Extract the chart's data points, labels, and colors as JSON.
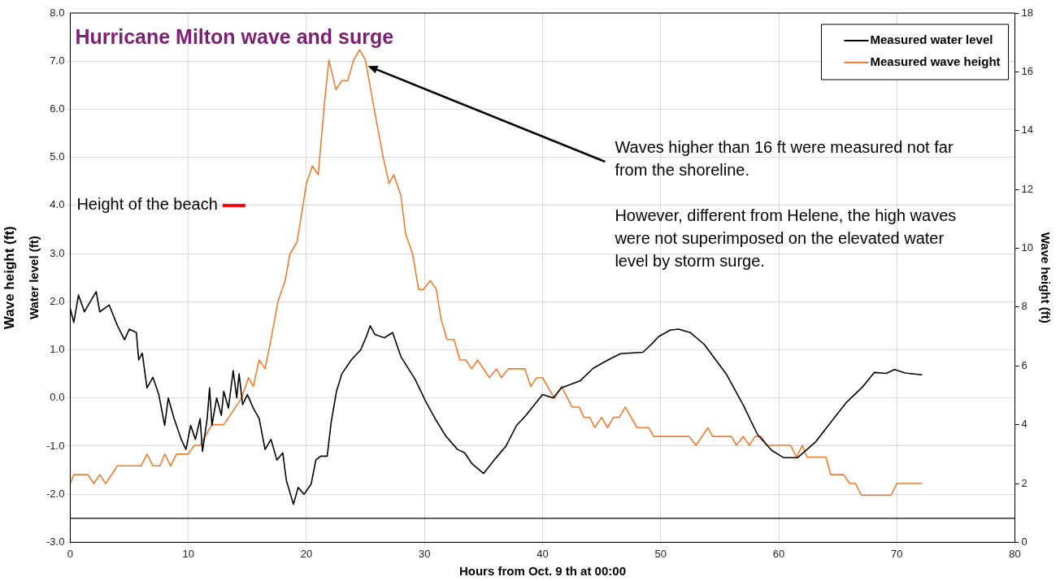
{
  "chart_data": {
    "type": "line",
    "title": "Hurricane Milton wave and surge",
    "xlabel": "Hours from Oct. 9 th at 00:00",
    "ylabel": "Water level (ft)",
    "y2label": "Wave height (ft)",
    "xlim": [
      0,
      80
    ],
    "xticks": [
      0,
      10,
      20,
      30,
      40,
      50,
      60,
      70,
      80
    ],
    "ylim": [
      -3,
      8
    ],
    "yticks": [
      {
        "value": -3,
        "label": "-3.0"
      },
      {
        "value": -2,
        "label": "-2.0"
      },
      {
        "value": -1,
        "label": "-1.0"
      },
      {
        "value": 0,
        "label": "0.0"
      },
      {
        "value": 1,
        "label": "1.0"
      },
      {
        "value": 2,
        "label": "2.0"
      },
      {
        "value": 3,
        "label": "3.0"
      },
      {
        "value": 4,
        "label": "4.0"
      },
      {
        "value": 5,
        "label": "5.0"
      },
      {
        "value": 6,
        "label": "6.0"
      },
      {
        "value": 7,
        "label": "7.0"
      },
      {
        "value": 8,
        "label": "8.0"
      }
    ],
    "y2lim": [
      0,
      18
    ],
    "y2ticks": [
      0,
      2,
      4,
      6,
      8,
      10,
      12,
      14,
      16,
      18
    ],
    "grid": true,
    "legend": "top right",
    "marker": "none",
    "line_style": "solid",
    "series": [
      {
        "name": "Measured water level",
        "color": "#000000",
        "x": [
          0,
          0.3,
          0.7,
          1.2,
          1.6,
          2.2,
          2.5,
          3.3,
          4,
          4.6,
          5,
          5.6,
          5.8,
          6.1,
          6.5,
          7,
          7.5,
          8,
          8.3,
          8.8,
          9.4,
          9.8,
          10.2,
          10.6,
          11,
          11.2,
          11.6,
          11.8,
          12,
          12.4,
          12.8,
          13,
          13.4,
          13.8,
          14.1,
          14.3,
          14.6,
          15,
          15.5,
          16,
          16.5,
          17,
          17.5,
          18,
          18.3,
          18.9,
          19.3,
          19.8,
          20.4,
          20.8,
          21.2,
          21.76,
          22.1,
          22.55,
          23,
          23.8,
          24.6,
          25.1,
          25.4,
          25.8,
          26.6,
          27.3,
          28,
          29.2,
          30.1,
          30.9,
          31.8,
          32.8,
          33.4,
          34,
          35,
          35.9,
          36.9,
          37.8,
          38.6,
          40,
          40.9,
          41.6,
          42.8,
          43.2,
          44.3,
          45.7,
          46.6,
          48.5,
          49.4,
          49.8,
          50.8,
          51.5,
          52.5,
          53.7,
          55.6,
          57,
          58.2,
          59.4,
          60.4,
          61.6,
          63.1,
          64.3,
          65.7,
          67.1,
          68.1,
          69.1,
          69.8,
          70.7,
          72.1
        ],
        "values": [
          1.86,
          1.57,
          2.14,
          1.79,
          1.96,
          2.21,
          1.79,
          1.93,
          1.5,
          1.21,
          1.43,
          1.36,
          0.79,
          0.93,
          0.21,
          0.43,
          0.07,
          -0.57,
          0,
          -0.43,
          -0.86,
          -1.07,
          -0.57,
          -0.86,
          -0.43,
          -1.11,
          -0.43,
          0.21,
          -0.57,
          0,
          -0.36,
          0.14,
          -0.21,
          0.57,
          0,
          0.5,
          -0.14,
          0.07,
          -0.21,
          -0.43,
          -1.07,
          -0.86,
          -1.29,
          -1.14,
          -1.71,
          -2.21,
          -1.86,
          -2.0,
          -1.79,
          -1.29,
          -1.21,
          -1.21,
          -0.5,
          0.14,
          0.5,
          0.79,
          1.0,
          1.29,
          1.5,
          1.32,
          1.25,
          1.36,
          0.86,
          0.39,
          -0.07,
          -0.43,
          -0.79,
          -1.07,
          -1.14,
          -1.36,
          -1.57,
          -1.29,
          -1.0,
          -0.57,
          -0.36,
          0.07,
          0,
          0.21,
          0.32,
          0.36,
          0.62,
          0.81,
          0.92,
          0.95,
          1.16,
          1.27,
          1.41,
          1.43,
          1.36,
          1.11,
          0.48,
          -0.15,
          -0.76,
          -1.09,
          -1.24,
          -1.24,
          -0.92,
          -0.54,
          -0.1,
          0.23,
          0.53,
          0.51,
          0.59,
          0.52,
          0.48
        ]
      },
      {
        "name": "Measured wave height",
        "color": "#ed7d31",
        "axis": "y2",
        "x": [
          0,
          0.3,
          1.5,
          2,
          2.5,
          3,
          4,
          6,
          6.5,
          7,
          7.6,
          8,
          8.5,
          9,
          10,
          10.5,
          11,
          12,
          13,
          14.5,
          15.1,
          15.5,
          16,
          16.5,
          17,
          17.6,
          18.2,
          18.6,
          19.2,
          20,
          20.5,
          21,
          21.5,
          21.9,
          22.5,
          23,
          23.5,
          24,
          24.5,
          25,
          25.8,
          26.5,
          27,
          27.4,
          28,
          28.4,
          29,
          29.5,
          29.9,
          30.5,
          31,
          31.4,
          31.9,
          32.5,
          33,
          33.5,
          34,
          34.5,
          35.5,
          36.1,
          36.5,
          37.1,
          38.5,
          39,
          39.5,
          40,
          41,
          41.6,
          42.5,
          43.1,
          43.5,
          44,
          44.4,
          45,
          45.5,
          46,
          46.5,
          47,
          48,
          49,
          49.4,
          52.4,
          53,
          54,
          54.4,
          56,
          56.4,
          57,
          57.5,
          58,
          58.5,
          59,
          61,
          61.5,
          62,
          62.4,
          64,
          64.4,
          65.5,
          66,
          66.5,
          67,
          69.5,
          70,
          72.1
        ],
        "values": [
          2.0,
          2.3,
          2.3,
          2.0,
          2.3,
          2.0,
          2.6,
          2.6,
          3.0,
          2.6,
          2.6,
          3.0,
          2.6,
          3.0,
          3.0,
          3.3,
          3.3,
          4.0,
          4.0,
          4.9,
          5.6,
          5.3,
          6.2,
          5.9,
          6.9,
          8.2,
          8.9,
          9.8,
          10.2,
          12.2,
          12.8,
          12.5,
          14.8,
          16.4,
          15.4,
          15.7,
          15.7,
          16.4,
          16.75,
          16.4,
          14.6,
          13.1,
          12.2,
          12.5,
          11.8,
          10.5,
          9.8,
          8.6,
          8.6,
          8.9,
          8.6,
          7.6,
          6.9,
          6.9,
          6.2,
          6.2,
          5.9,
          6.2,
          5.6,
          5.9,
          5.6,
          5.9,
          5.9,
          5.3,
          5.6,
          5.6,
          4.9,
          5.3,
          4.6,
          4.6,
          4.25,
          4.25,
          3.9,
          4.25,
          3.9,
          4.25,
          4.25,
          4.6,
          3.9,
          3.9,
          3.6,
          3.6,
          3.3,
          3.9,
          3.6,
          3.6,
          3.3,
          3.6,
          3.3,
          3.6,
          3.6,
          3.3,
          3.3,
          2.9,
          3.3,
          2.9,
          2.9,
          2.3,
          2.3,
          2.0,
          2.0,
          1.6,
          1.6,
          2.0,
          2.0
        ]
      }
    ],
    "ref_lines": [
      {
        "axis": "y",
        "value": 4.0,
        "label": "Height of the beach",
        "color": "#ff0000"
      },
      {
        "axis": "y",
        "value": -2.5,
        "color": "#000000"
      }
    ],
    "annotations": [
      {
        "text": "Waves higher than 16 ft were measured not far from the shoreline.",
        "x": 25.2,
        "y": 6.9
      },
      "However, different from Helene, the high waves were not superimposed on the elevated water level by storm surge.",
      "Wave height (ft)"
    ]
  }
}
